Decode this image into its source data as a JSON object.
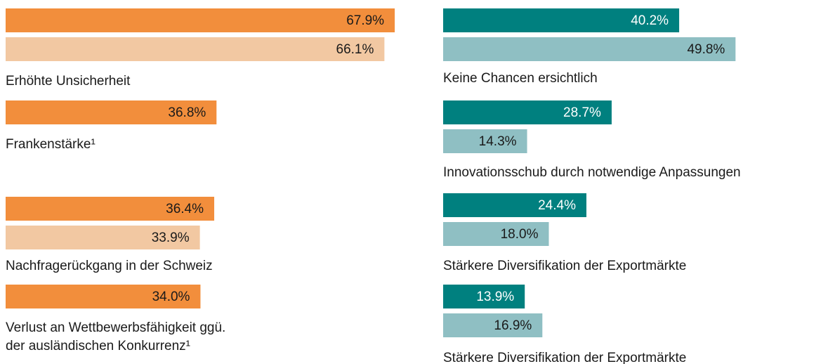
{
  "chart_data": [
    {
      "type": "bar",
      "categories": [
        "Erhöhte Unsicherheit",
        "Frankenstärke¹",
        "Nachfragerückgang in der Schweiz",
        "Verlust an Wettbewerbsfähigkeit ggü.\nder ausländischen Konkurrenz¹"
      ],
      "xlim": [
        0,
        100
      ],
      "series": [
        {
          "color": "#f28e3c",
          "label_color": "#1a1a1a",
          "values": [
            67.9,
            36.8,
            36.4,
            34.0
          ],
          "value_labels": [
            "67.9%",
            "36.8%",
            "36.4%",
            "34.0%"
          ]
        },
        {
          "color": "#f2c8a2",
          "label_color": "#1a1a1a",
          "values": [
            66.1,
            null,
            33.9,
            null
          ],
          "value_labels": [
            "66.1%",
            null,
            "33.9%",
            null
          ]
        }
      ]
    },
    {
      "type": "bar",
      "categories": [
        "Keine Chancen ersichtlich",
        "Innovationsschub durch notwendige Anpassungen",
        "Stärkere Diversifikation der Exportmärkte",
        "Stärkere Diversifikation der Exportmärkte"
      ],
      "xlim": [
        0,
        100
      ],
      "series": [
        {
          "color": "#00807f",
          "label_color": "#ffffff",
          "values": [
            40.2,
            28.7,
            24.4,
            13.9
          ],
          "value_labels": [
            "40.2%",
            "28.7%",
            "24.4%",
            "13.9%"
          ]
        },
        {
          "color": "#8fbfc3",
          "label_color": "#1a1a1a",
          "values": [
            49.8,
            14.3,
            18.0,
            16.9
          ],
          "value_labels": [
            "49.8%",
            "14.3%",
            "18.0%",
            "16.9%"
          ]
        }
      ]
    }
  ]
}
